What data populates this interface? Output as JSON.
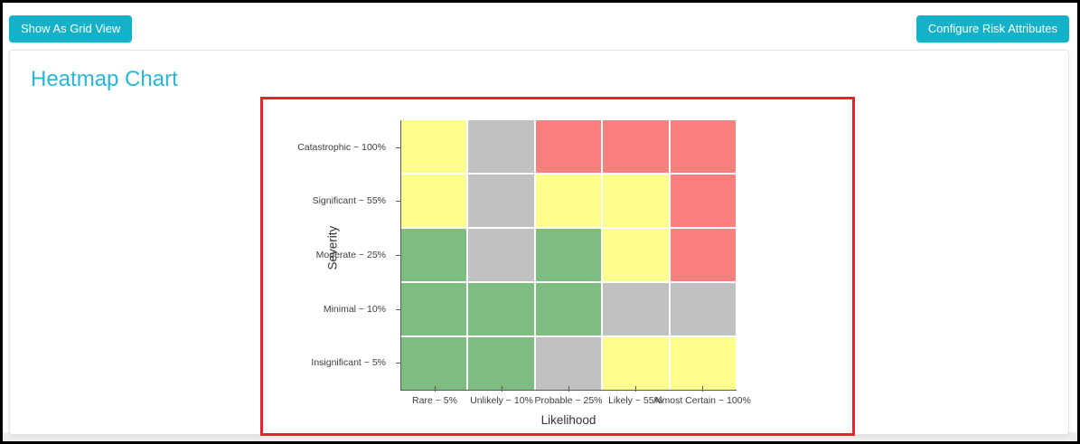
{
  "topbar": {
    "grid_view_button": "Show As Grid View",
    "configure_button": "Configure Risk Attributes"
  },
  "card": {
    "title": "Heatmap Chart"
  },
  "colors": {
    "accent": "#14b2c9",
    "title_text": "#29b5d8",
    "chart_border": "#e8212c"
  },
  "chart_data": {
    "type": "heatmap",
    "title": "",
    "xlabel": "Likelihood",
    "ylabel": "Severity",
    "x_categories": [
      "Rare ~ 5%",
      "Unlikely ~ 10%",
      "Probable ~ 25%",
      "Likely ~ 55%",
      "Almost Certain ~ 100%"
    ],
    "y_categories": [
      "Catastrophic ~ 100%",
      "Significant ~ 55%",
      "Moderate ~ 25%",
      "Minimal ~ 10%",
      "Insignificant ~ 5%"
    ],
    "palette": {
      "green": "#7dbe80",
      "yellow": "#fdfe8d",
      "gray": "#c1c1c1",
      "red": "#fb817f"
    },
    "rows": [
      [
        "yellow",
        "gray",
        "red",
        "red",
        "red"
      ],
      [
        "yellow",
        "gray",
        "yellow",
        "yellow",
        "red"
      ],
      [
        "green",
        "gray",
        "green",
        "yellow",
        "red"
      ],
      [
        "green",
        "green",
        "green",
        "gray",
        "gray"
      ],
      [
        "green",
        "green",
        "gray",
        "yellow",
        "yellow"
      ]
    ],
    "legend_position": "none",
    "grid": true
  }
}
